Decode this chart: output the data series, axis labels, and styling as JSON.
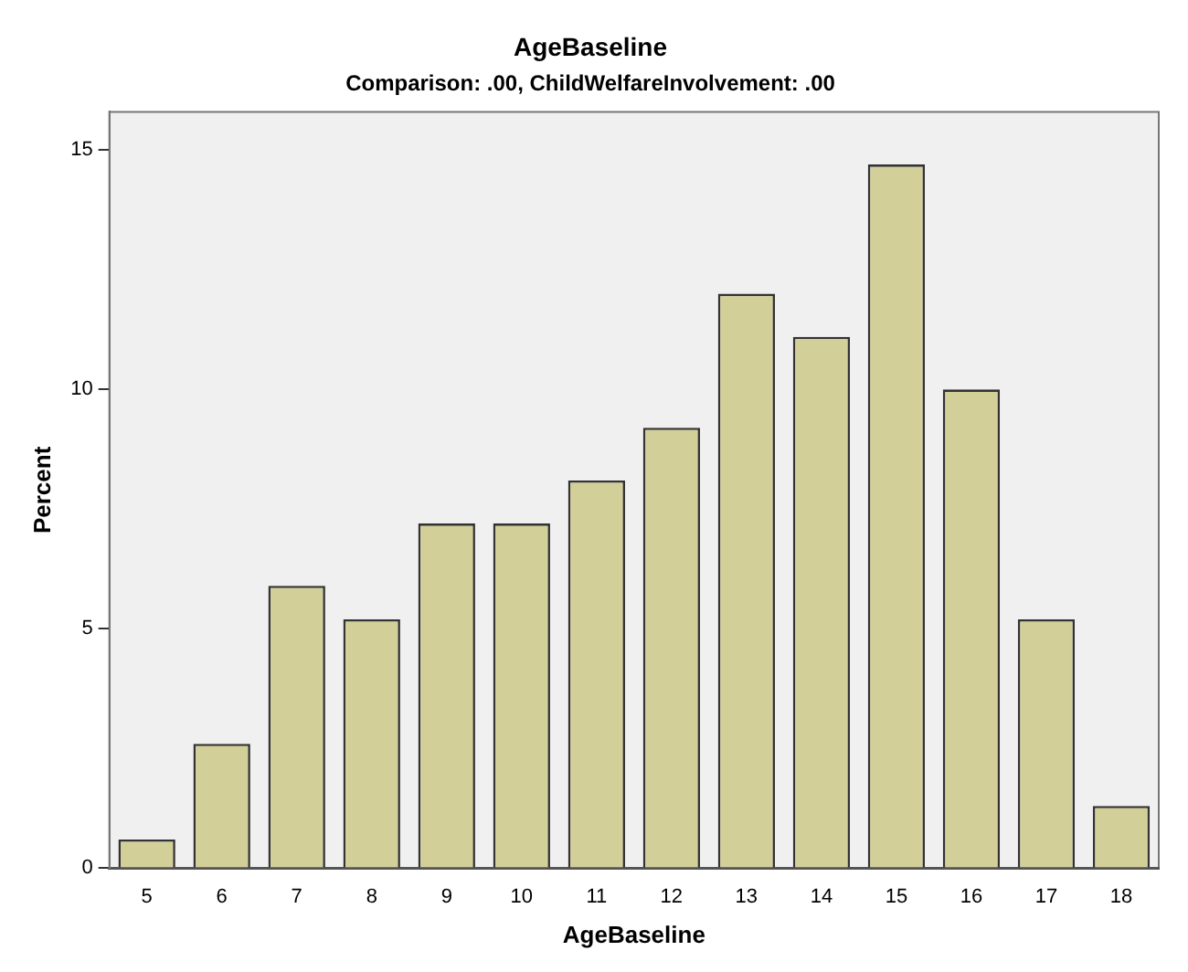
{
  "chart_data": {
    "type": "bar",
    "title": "AgeBaseline",
    "subtitle": "Comparison: .00, ChildWelfareInvolvement: .00",
    "xlabel": "AgeBaseline",
    "ylabel": "Percent",
    "categories": [
      "5",
      "6",
      "7",
      "8",
      "9",
      "10",
      "11",
      "12",
      "13",
      "14",
      "15",
      "16",
      "17",
      "18"
    ],
    "values": [
      0.6,
      2.6,
      5.9,
      5.2,
      7.2,
      7.2,
      8.1,
      9.2,
      12.0,
      11.1,
      14.7,
      10.0,
      5.2,
      1.3
    ],
    "color": "#d3cf98",
    "ylim": [
      0,
      15.8
    ],
    "yticks": [
      0,
      5,
      10,
      15
    ],
    "grid": false,
    "legend": false
  }
}
